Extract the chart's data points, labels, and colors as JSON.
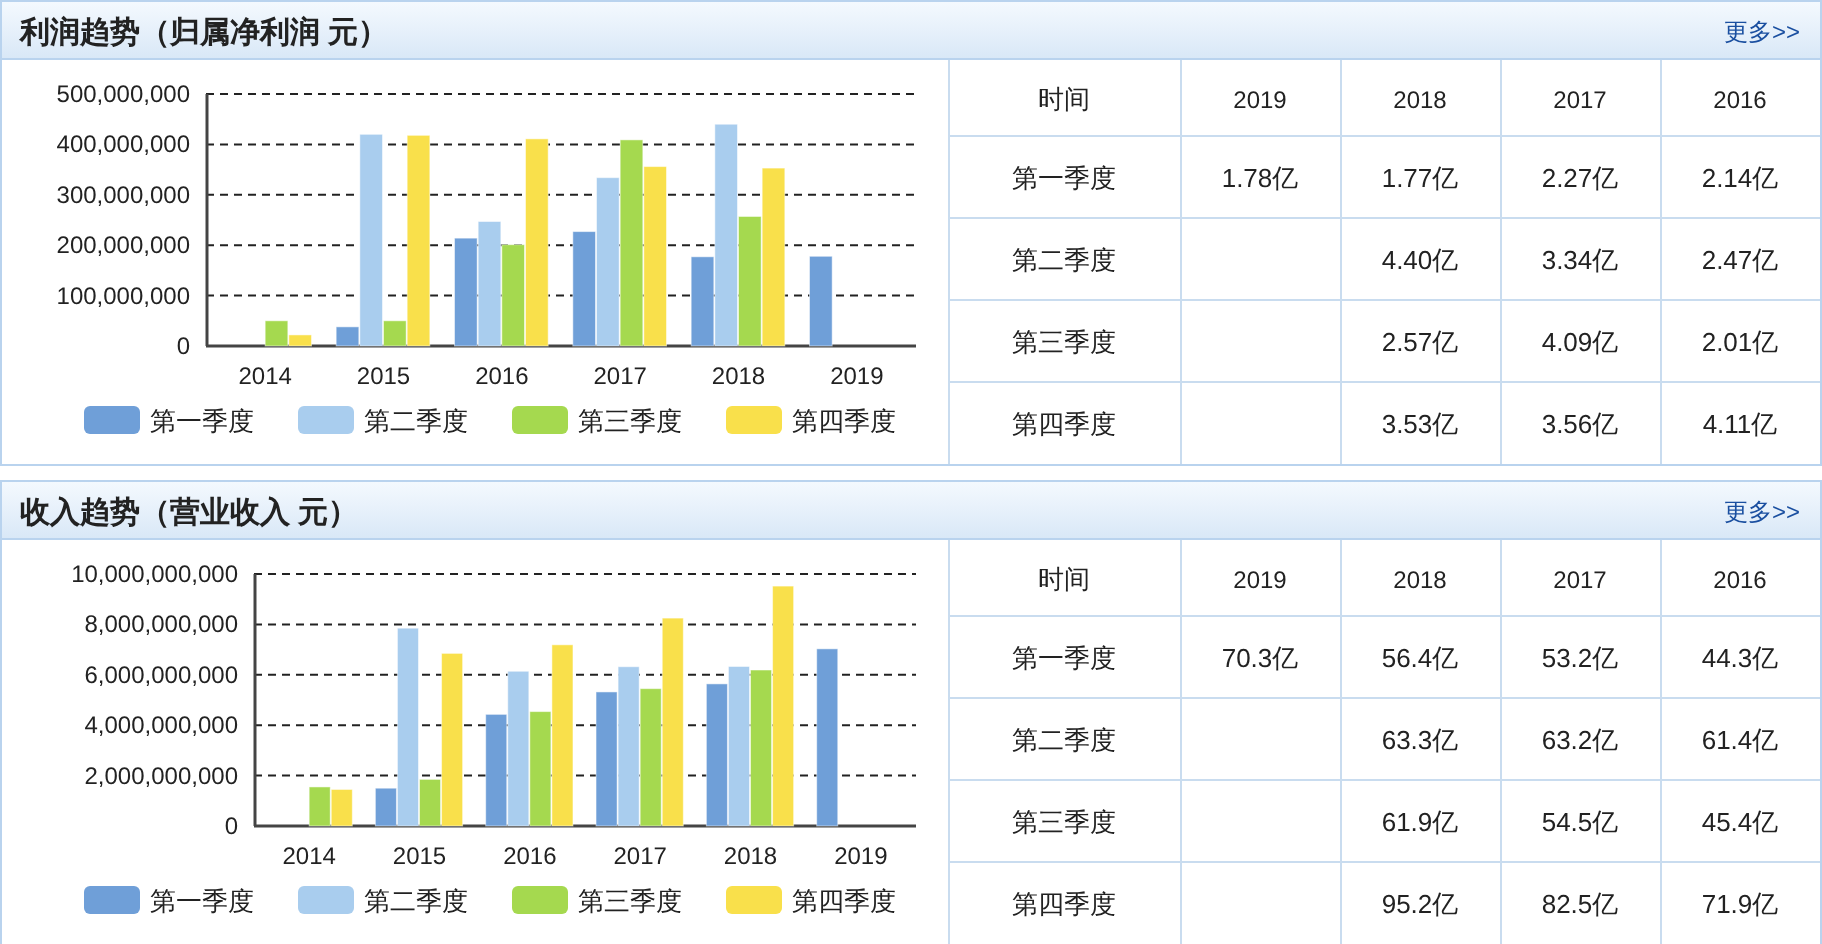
{
  "chart_data": [
    {
      "type": "bar",
      "title": "利润趋势（归属净利润 元）",
      "annotations": [
        "更多>>"
      ],
      "categories": [
        "2014",
        "2015",
        "2016",
        "2017",
        "2018",
        "2019"
      ],
      "series": [
        {
          "name": "第一季度",
          "color": "#6f9fd8",
          "values": [
            null,
            38000000,
            214000000,
            227000000,
            177000000,
            178000000
          ]
        },
        {
          "name": "第二季度",
          "color": "#a9cdee",
          "values": [
            null,
            420000000,
            247000000,
            334000000,
            440000000,
            null
          ]
        },
        {
          "name": "第三季度",
          "color": "#a5d94f",
          "values": [
            50000000,
            50000000,
            201000000,
            409000000,
            257000000,
            null
          ]
        },
        {
          "name": "第四季度",
          "color": "#f9e04b",
          "values": [
            22000000,
            418000000,
            411000000,
            356000000,
            353000000,
            null
          ]
        }
      ],
      "ylim": [
        0,
        500000000
      ],
      "yticks": [
        0,
        {
          "value": 100000000,
          "label": "100,000,000"
        },
        {
          "value": 200000000,
          "label": "200,000,000"
        },
        {
          "value": 300000000,
          "label": "300,000,000"
        },
        {
          "value": 400000000,
          "label": "400,000,000"
        },
        {
          "value": 500000000,
          "label": "500,000,000"
        }
      ],
      "grid": "y",
      "legend": "bottom"
    },
    {
      "type": "heatmap",
      "annotations": [
        "时间"
      ],
      "categories": [
        "2019",
        "2018",
        "2017",
        "2016"
      ],
      "y_categories": [
        "第一季度",
        "第二季度",
        "第三季度",
        "第四季度"
      ],
      "cells": [
        [
          1.78,
          1.77,
          2.27,
          2.14
        ],
        [
          null,
          4.4,
          3.34,
          2.47
        ],
        [
          null,
          2.57,
          4.09,
          2.01
        ],
        [
          null,
          3.53,
          3.56,
          4.11
        ]
      ],
      "cell_labels": [
        [
          "1.78亿",
          "1.77亿",
          "2.27亿",
          "2.14亿"
        ],
        [
          null,
          "4.40亿",
          "3.34亿",
          "2.47亿"
        ],
        [
          null,
          "2.57亿",
          "4.09亿",
          "2.01亿"
        ],
        [
          null,
          "3.53亿",
          "3.56亿",
          "4.11亿"
        ]
      ]
    },
    {
      "type": "bar",
      "title": "收入趋势（营业收入 元）",
      "annotations": [
        "更多>>"
      ],
      "categories": [
        "2014",
        "2015",
        "2016",
        "2017",
        "2018",
        "2019"
      ],
      "series": [
        {
          "name": "第一季度",
          "color": "#6f9fd8",
          "values": [
            null,
            1500000000,
            4430000000,
            5320000000,
            5640000000,
            7030000000
          ]
        },
        {
          "name": "第二季度",
          "color": "#a9cdee",
          "values": [
            null,
            7850000000,
            6140000000,
            6320000000,
            6330000000,
            null
          ]
        },
        {
          "name": "第三季度",
          "color": "#a5d94f",
          "values": [
            1550000000,
            1850000000,
            4540000000,
            5450000000,
            6190000000,
            null
          ]
        },
        {
          "name": "第四季度",
          "color": "#f9e04b",
          "values": [
            1450000000,
            6850000000,
            7190000000,
            8250000000,
            9520000000,
            null
          ]
        }
      ],
      "ylim": [
        0,
        10000000000
      ],
      "yticks": [
        0,
        {
          "value": 2000000000,
          "label": "2,000,000,000"
        },
        {
          "value": 4000000000,
          "label": "4,000,000,000"
        },
        {
          "value": 6000000000,
          "label": "6,000,000,000"
        },
        {
          "value": 8000000000,
          "label": "8,000,000,000"
        },
        {
          "value": 10000000000,
          "label": "10,000,000,000"
        }
      ],
      "grid": "y",
      "legend": "bottom"
    },
    {
      "type": "heatmap",
      "annotations": [
        "时间"
      ],
      "categories": [
        "2019",
        "2018",
        "2017",
        "2016"
      ],
      "y_categories": [
        "第一季度",
        "第二季度",
        "第三季度",
        "第四季度"
      ],
      "cells": [
        [
          70.3,
          56.4,
          53.2,
          44.3
        ],
        [
          null,
          63.3,
          63.2,
          61.4
        ],
        [
          null,
          61.9,
          54.5,
          45.4
        ],
        [
          null,
          95.2,
          82.5,
          71.9
        ]
      ],
      "cell_labels": [
        [
          "70.3亿",
          "56.4亿",
          "53.2亿",
          "44.3亿"
        ],
        [
          null,
          "63.3亿",
          "63.2亿",
          "61.4亿"
        ],
        [
          null,
          "61.9亿",
          "54.5亿",
          "45.4亿"
        ],
        [
          null,
          "95.2亿",
          "82.5亿",
          "71.9亿"
        ]
      ]
    }
  ]
}
